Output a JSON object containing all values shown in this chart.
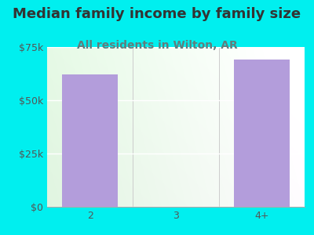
{
  "title": "Median family income by family size",
  "subtitle": "All residents in Wilton, AR",
  "categories": [
    "2",
    "3",
    "4+"
  ],
  "values": [
    62000,
    0,
    69000
  ],
  "bar_color": "#b39ddb",
  "background_color": "#00efef",
  "title_color": "#333333",
  "subtitle_color": "#607d7d",
  "tick_color": "#555555",
  "ylim": [
    0,
    75000
  ],
  "yticks": [
    0,
    25000,
    50000,
    75000
  ],
  "ytick_labels": [
    "$0",
    "$25k",
    "$50k",
    "$75k"
  ],
  "title_fontsize": 13,
  "subtitle_fontsize": 10,
  "bar_width": 0.65,
  "plot_bg_left": "#e8f5e9",
  "plot_bg_right": "#f8fff5"
}
